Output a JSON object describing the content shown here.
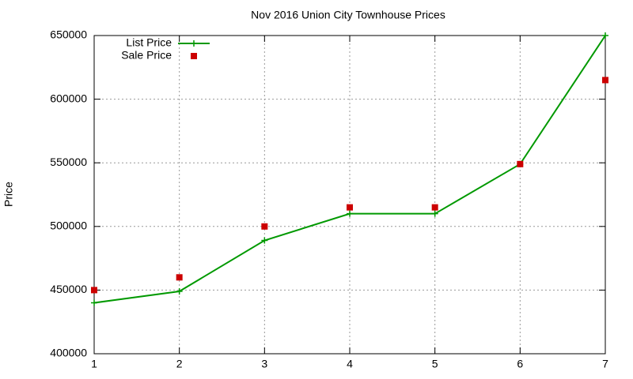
{
  "chart_data": {
    "type": "line",
    "title": "Nov 2016 Union City Townhouse Prices",
    "y_label": "Price",
    "x": [
      1,
      2,
      3,
      4,
      5,
      6,
      7
    ],
    "series": [
      {
        "name": "List Price",
        "color": "#009900",
        "style": "line",
        "values": [
          440000,
          449000,
          489000,
          510000,
          510000,
          549000,
          650000
        ]
      },
      {
        "name": "Sale Price",
        "color": "#cc0000",
        "style": "points",
        "values": [
          450000,
          460000,
          500000,
          515000,
          515000,
          549000,
          615000
        ]
      }
    ],
    "xlim": [
      1,
      7
    ],
    "xticks": [
      1,
      2,
      3,
      4,
      5,
      6,
      7
    ],
    "ylim": [
      400000,
      650000
    ],
    "yticks": [
      400000,
      450000,
      500000,
      550000,
      600000,
      650000
    ],
    "grid": true,
    "legend": "top-left"
  }
}
